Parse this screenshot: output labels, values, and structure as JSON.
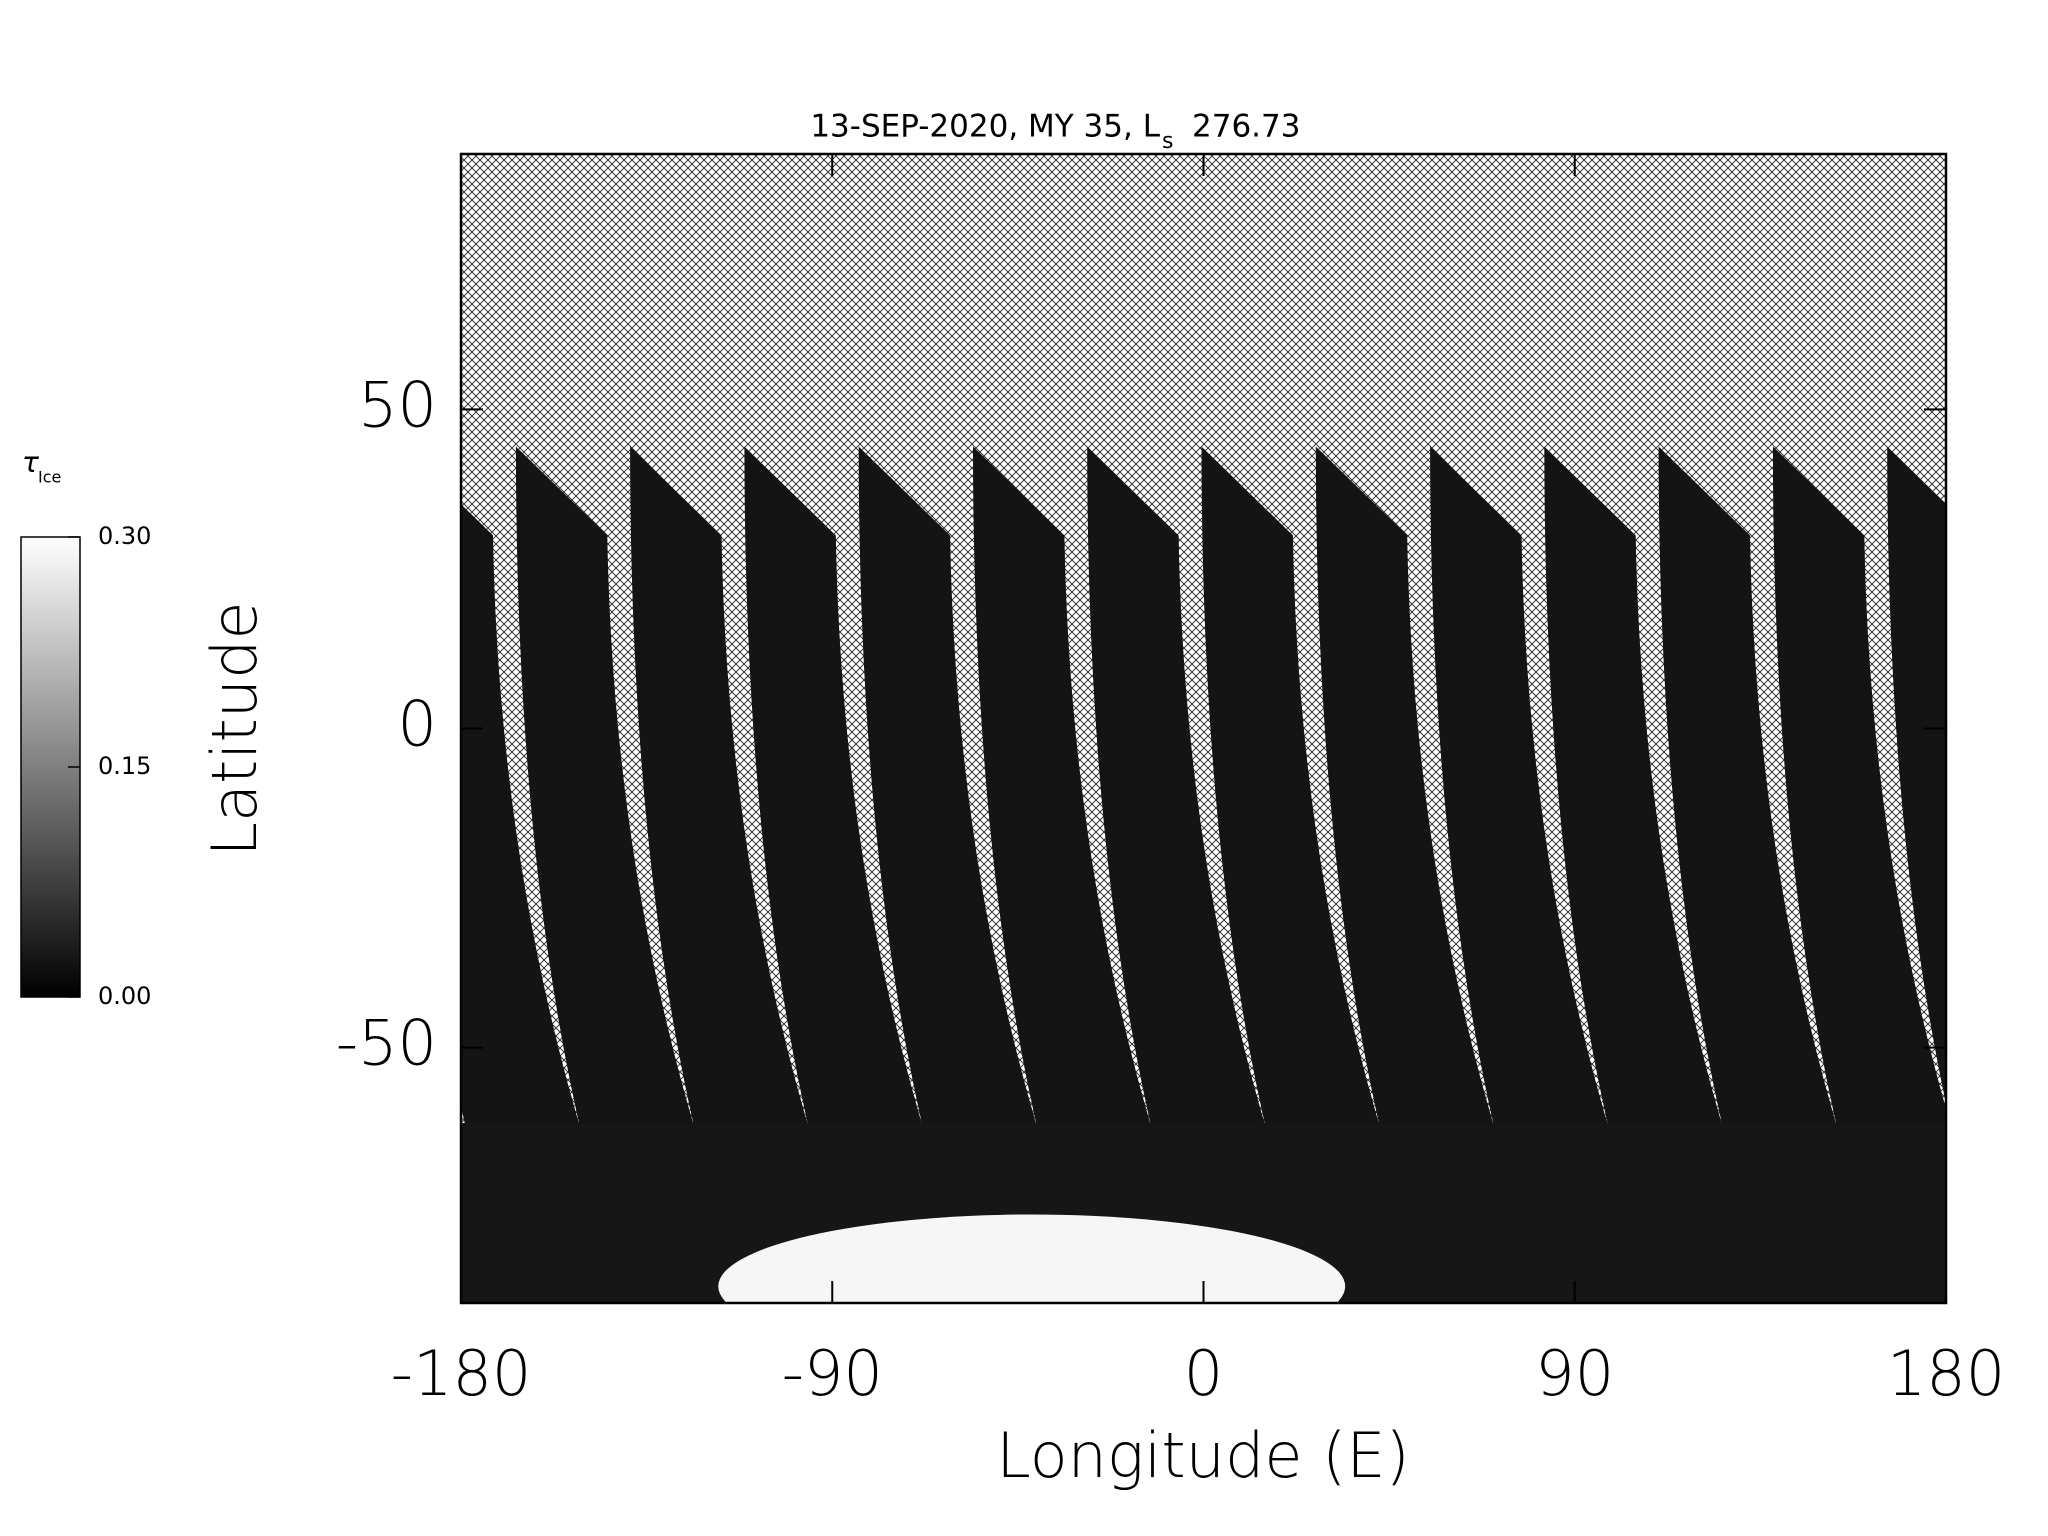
{
  "chart_data": {
    "type": "map",
    "title": "13-SEP-2020, MY 35,  L",
    "title_subscript": "s",
    "title_suffix": "276.73",
    "x_label": "Longitude (E)",
    "y_label": "Latitude",
    "xlim": [
      -180,
      180
    ],
    "xticks": [
      -180,
      -90,
      0,
      90,
      180
    ],
    "ylim": [
      -90,
      90
    ],
    "yticks": [
      -50,
      0,
      50
    ],
    "colorbar": {
      "label": "τ",
      "label_subscript": "Ice",
      "lim": [
        0,
        0.3
      ],
      "ticks": [
        {
          "value": 0,
          "label": "0.00"
        },
        {
          "value": 0.15,
          "label": "0.15"
        },
        {
          "value": 0.3,
          "label": "0.30"
        }
      ],
      "colors": [
        "#000000",
        "#ffffff"
      ]
    }
  }
}
